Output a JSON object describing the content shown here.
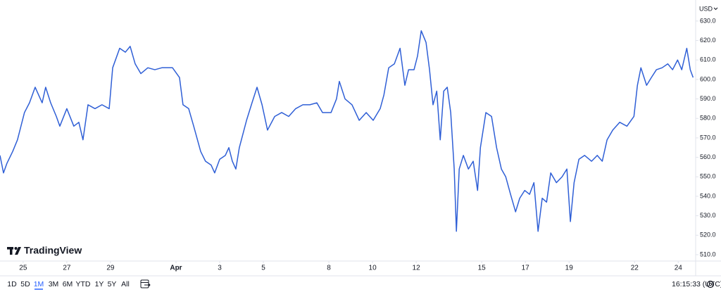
{
  "chart_data": {
    "type": "line",
    "currency": "USD",
    "color": "#2f5fd6",
    "xlim": [
      -1.06,
      30.7
    ],
    "ylim": [
      507.1,
      640.8
    ],
    "xticks": [
      {
        "value": 0,
        "label": "25"
      },
      {
        "value": 2,
        "label": "27"
      },
      {
        "value": 4,
        "label": "29"
      },
      {
        "value": 7,
        "label": "Apr"
      },
      {
        "value": 9,
        "label": "3"
      },
      {
        "value": 11,
        "label": "5"
      },
      {
        "value": 14,
        "label": "8"
      },
      {
        "value": 16,
        "label": "10"
      },
      {
        "value": 18,
        "label": "12"
      },
      {
        "value": 21,
        "label": "15"
      },
      {
        "value": 23,
        "label": "17"
      },
      {
        "value": 25,
        "label": "19"
      },
      {
        "value": 28,
        "label": "22"
      },
      {
        "value": 30,
        "label": "24"
      }
    ],
    "yticks": [
      {
        "value": 510,
        "label": "510.0"
      },
      {
        "value": 520,
        "label": "520.0"
      },
      {
        "value": 530,
        "label": "530.0"
      },
      {
        "value": 540,
        "label": "540.0"
      },
      {
        "value": 550,
        "label": "550.0"
      },
      {
        "value": 560,
        "label": "560.0"
      },
      {
        "value": 570,
        "label": "570.0"
      },
      {
        "value": 580,
        "label": "580.0"
      },
      {
        "value": 590,
        "label": "590.0"
      },
      {
        "value": 600,
        "label": "600.0"
      },
      {
        "value": 610,
        "label": "610.0"
      },
      {
        "value": 620,
        "label": "620.0"
      },
      {
        "value": 630,
        "label": "630.0"
      }
    ],
    "x": [
      -1.06,
      -0.9,
      -0.74,
      -0.48,
      -0.26,
      0.06,
      0.29,
      0.55,
      0.71,
      0.87,
      1.03,
      1.26,
      1.52,
      1.68,
      2.0,
      2.32,
      2.55,
      2.74,
      2.97,
      3.29,
      3.61,
      3.94,
      4.1,
      4.42,
      4.68,
      4.9,
      5.13,
      5.39,
      5.71,
      6.03,
      6.35,
      6.84,
      7.16,
      7.32,
      7.58,
      7.81,
      8.13,
      8.35,
      8.61,
      8.77,
      9.0,
      9.26,
      9.42,
      9.58,
      9.74,
      9.9,
      10.23,
      10.48,
      10.71,
      10.94,
      11.19,
      11.52,
      11.84,
      12.16,
      12.48,
      12.81,
      13.13,
      13.45,
      13.71,
      13.94,
      14.1,
      14.35,
      14.48,
      14.74,
      15.06,
      15.39,
      15.71,
      16.03,
      16.35,
      16.52,
      16.74,
      17.0,
      17.26,
      17.48,
      17.65,
      17.9,
      18.06,
      18.23,
      18.45,
      18.61,
      18.77,
      18.94,
      19.1,
      19.26,
      19.42,
      19.58,
      19.74,
      19.84,
      19.97,
      20.16,
      20.39,
      20.61,
      20.81,
      20.94,
      21.19,
      21.45,
      21.68,
      21.9,
      22.1,
      22.32,
      22.55,
      22.74,
      22.97,
      23.19,
      23.39,
      23.58,
      23.77,
      23.97,
      24.16,
      24.42,
      24.68,
      24.9,
      25.06,
      25.23,
      25.45,
      25.71,
      26.03,
      26.29,
      26.52,
      26.74,
      27.0,
      27.32,
      27.65,
      27.97,
      28.13,
      28.29,
      28.55,
      28.77,
      29.0,
      29.26,
      29.52,
      29.74,
      29.97,
      30.16,
      30.39,
      30.55,
      30.68
    ],
    "values": [
      561,
      552,
      557,
      563,
      569,
      583,
      588,
      596,
      592,
      588,
      596,
      588,
      581,
      576,
      585,
      576,
      578,
      569,
      587,
      585,
      587,
      585,
      606,
      616,
      614,
      617,
      608,
      603,
      606,
      605,
      606,
      606,
      601,
      587,
      585,
      576,
      563,
      558,
      556,
      552,
      559,
      561,
      565,
      558,
      554,
      565,
      579,
      588,
      596,
      587,
      574,
      581,
      583,
      581,
      585,
      587,
      587,
      588,
      583,
      583,
      583,
      590,
      599,
      590,
      587,
      579,
      583,
      579,
      585,
      592,
      606,
      608,
      616,
      597,
      605,
      605,
      612,
      625,
      619,
      605,
      587,
      594,
      569,
      594,
      596,
      583,
      554,
      522,
      554,
      561,
      554,
      558,
      543,
      565,
      583,
      581,
      565,
      554,
      550,
      541,
      532,
      539,
      543,
      541,
      547,
      522,
      539,
      537,
      552,
      547,
      550,
      554,
      527,
      547,
      559,
      561,
      558,
      561,
      558,
      569,
      574,
      578,
      576,
      581,
      597,
      606,
      597,
      601,
      605,
      606,
      608,
      605,
      610,
      605,
      616,
      605,
      601
    ]
  },
  "logo": "TradingView",
  "toolbar": {
    "ranges": [
      "1D",
      "5D",
      "1M",
      "3M",
      "6M",
      "YTD",
      "1Y",
      "5Y",
      "All"
    ],
    "active_range_index": 2,
    "time": "16:15:33 (UTC)"
  }
}
